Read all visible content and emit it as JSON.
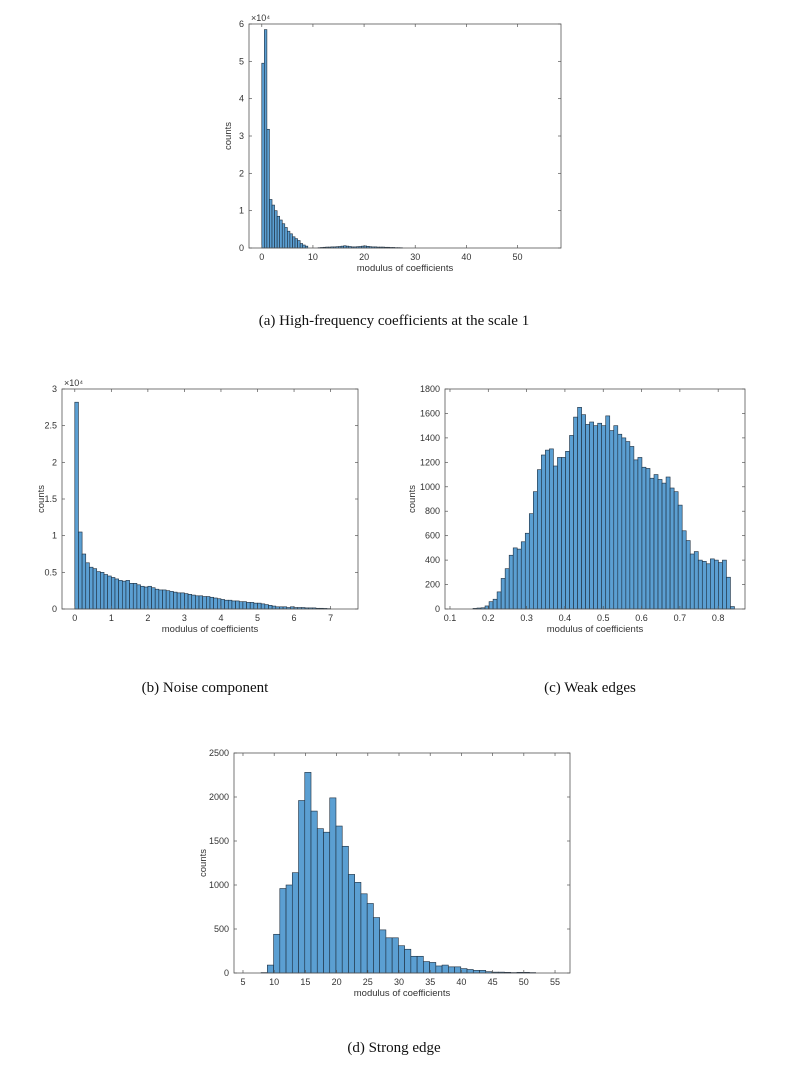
{
  "style": {
    "bar_fill": "#5b9fd2",
    "bar_edge": "#1c2c3c",
    "axis": "#555555"
  },
  "chart_data": [
    {
      "id": "a",
      "type": "bar",
      "title": "",
      "caption": "(a) High-frequency coefficients at the scale 1",
      "xlabel": "modulus of coefficients",
      "ylabel": "counts",
      "exponent": "×10⁴",
      "xlim": [
        -2.5,
        58.5
      ],
      "ylim": [
        0,
        60000
      ],
      "xticks": [
        0,
        10,
        20,
        30,
        40,
        50
      ],
      "xtick_labels": [
        "0",
        "10",
        "20",
        "30",
        "40",
        "50"
      ],
      "yticks": [
        0,
        10000,
        20000,
        30000,
        40000,
        50000,
        60000
      ],
      "ytick_labels": [
        "0",
        "1",
        "2",
        "3",
        "4",
        "5",
        "6"
      ],
      "bin_start": 0,
      "bin_width": 0.5,
      "values": [
        49500,
        58500,
        31800,
        13000,
        11500,
        10000,
        8500,
        7500,
        6500,
        5500,
        4500,
        3800,
        3000,
        2500,
        2000,
        1200,
        800,
        500,
        0,
        0,
        0,
        0,
        100,
        150,
        200,
        250,
        250,
        300,
        300,
        350,
        400,
        500,
        600,
        500,
        400,
        300,
        300,
        350,
        400,
        500,
        550,
        450,
        350,
        300,
        300,
        250,
        250,
        250,
        200,
        200,
        150,
        150,
        100,
        100,
        80
      ]
    },
    {
      "id": "b",
      "type": "bar",
      "caption": "(b) Noise component",
      "xlabel": "modulus of coefficients",
      "ylabel": "counts",
      "exponent": "×10⁴",
      "xlim": [
        -0.35,
        7.75
      ],
      "ylim": [
        0,
        30000
      ],
      "xticks": [
        0,
        1,
        2,
        3,
        4,
        5,
        6,
        7
      ],
      "xtick_labels": [
        "0",
        "1",
        "2",
        "3",
        "4",
        "5",
        "6",
        "7"
      ],
      "yticks": [
        0,
        5000,
        10000,
        15000,
        20000,
        25000,
        30000
      ],
      "ytick_labels": [
        "0",
        "0.5",
        "1",
        "1.5",
        "2",
        "2.5",
        "3"
      ],
      "bin_start": 0,
      "bin_width": 0.1,
      "values": [
        28200,
        10500,
        7500,
        6300,
        5700,
        5500,
        5100,
        5000,
        4700,
        4500,
        4300,
        4100,
        3900,
        3800,
        3900,
        3500,
        3500,
        3300,
        3100,
        3000,
        3100,
        2900,
        2700,
        2600,
        2600,
        2500,
        2400,
        2300,
        2200,
        2200,
        2100,
        2000,
        1900,
        1800,
        1800,
        1700,
        1700,
        1600,
        1500,
        1400,
        1300,
        1200,
        1200,
        1100,
        1100,
        1000,
        1000,
        900,
        900,
        800,
        800,
        700,
        600,
        500,
        400,
        300,
        300,
        300,
        200,
        300,
        200,
        200,
        200,
        150,
        150,
        150,
        100,
        100,
        80,
        50
      ]
    },
    {
      "id": "c",
      "type": "bar",
      "caption": "(c) Weak edges",
      "xlabel": "modulus of coefficients",
      "ylabel": "counts",
      "xlim": [
        0.087,
        0.87
      ],
      "ylim": [
        0,
        1800
      ],
      "xticks": [
        0.1,
        0.2,
        0.3,
        0.4,
        0.5,
        0.6,
        0.7,
        0.8
      ],
      "xtick_labels": [
        "0.1",
        "0.2",
        "0.3",
        "0.4",
        "0.5",
        "0.6",
        "0.7",
        "0.8"
      ],
      "yticks": [
        0,
        200,
        400,
        600,
        800,
        1000,
        1200,
        1400,
        1600,
        1800
      ],
      "ytick_labels": [
        "0",
        "200",
        "400",
        "600",
        "800",
        "1000",
        "1200",
        "1400",
        "1600",
        "1800"
      ],
      "bin_start": 0.16,
      "bin_width": 0.0105,
      "values": [
        5,
        8,
        10,
        25,
        60,
        80,
        140,
        250,
        330,
        440,
        500,
        490,
        550,
        620,
        780,
        960,
        1140,
        1260,
        1300,
        1310,
        1170,
        1240,
        1240,
        1290,
        1420,
        1570,
        1650,
        1590,
        1510,
        1530,
        1500,
        1520,
        1500,
        1580,
        1460,
        1500,
        1430,
        1400,
        1370,
        1330,
        1220,
        1240,
        1160,
        1150,
        1070,
        1100,
        1060,
        1030,
        1080,
        990,
        960,
        850,
        640,
        560,
        450,
        470,
        400,
        390,
        370,
        410,
        400,
        380,
        400,
        260,
        20
      ]
    },
    {
      "id": "d",
      "type": "bar",
      "caption": "(d) Strong edge",
      "xlabel": "modulus of coefficients",
      "ylabel": "counts",
      "xlim": [
        3.56,
        57.4
      ],
      "ylim": [
        0,
        2500
      ],
      "xticks": [
        5,
        10,
        15,
        20,
        25,
        30,
        35,
        40,
        45,
        50,
        55
      ],
      "xtick_labels": [
        "5",
        "10",
        "15",
        "20",
        "25",
        "30",
        "35",
        "40",
        "45",
        "50",
        "55"
      ],
      "yticks": [
        0,
        500,
        1000,
        1500,
        2000,
        2500
      ],
      "ytick_labels": [
        "0",
        "500",
        "1000",
        "1500",
        "2000",
        "2500"
      ],
      "bin_start": 7.9,
      "bin_width": 1.0,
      "values": [
        5,
        90,
        440,
        960,
        1000,
        1140,
        1960,
        2280,
        1840,
        1640,
        1600,
        1990,
        1670,
        1440,
        1120,
        1030,
        900,
        790,
        630,
        490,
        400,
        400,
        310,
        270,
        190,
        190,
        130,
        120,
        80,
        90,
        70,
        70,
        50,
        40,
        30,
        30,
        15,
        10,
        10,
        8,
        5,
        8,
        8,
        5
      ]
    }
  ]
}
